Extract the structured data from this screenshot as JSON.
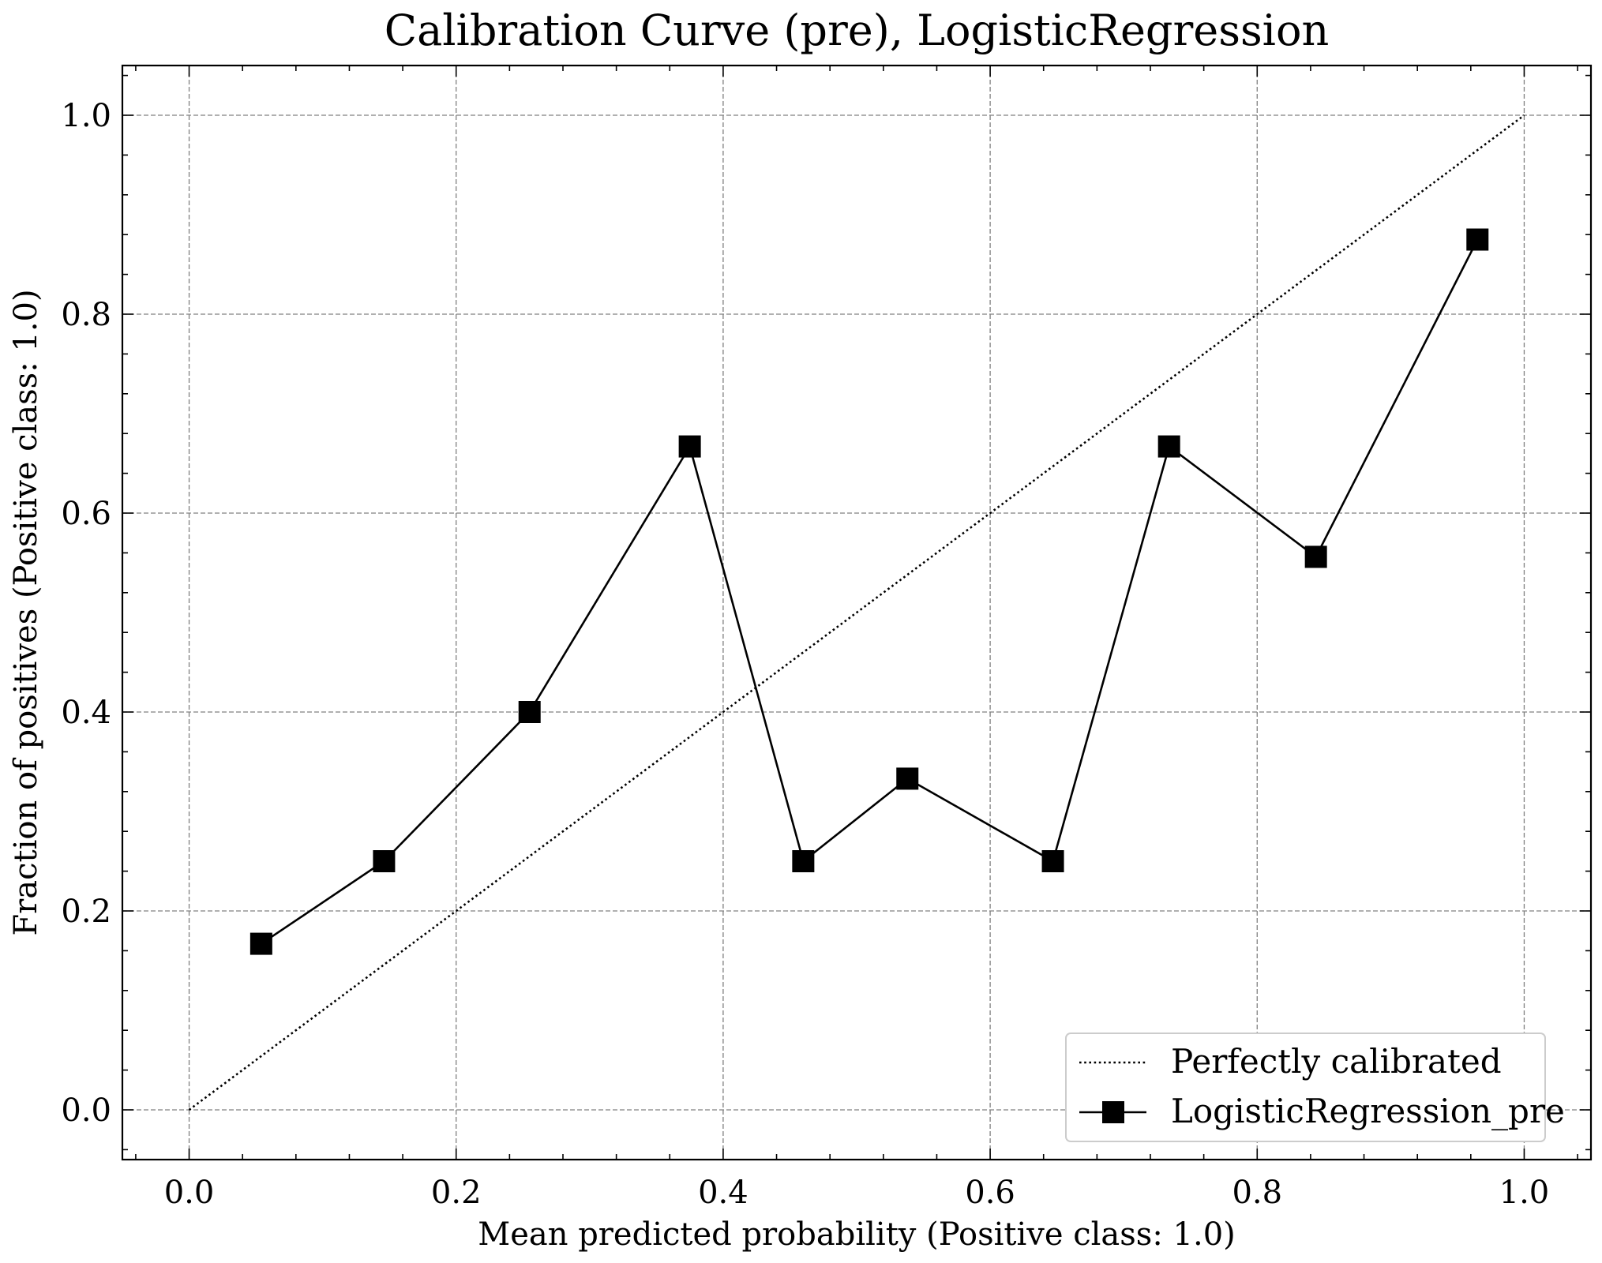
{
  "chart_data": {
    "type": "line",
    "title": "Calibration Curve (pre), LogisticRegression",
    "xlabel": "Mean predicted probability (Positive class: 1.0)",
    "ylabel": "Fraction of positives (Positive class: 1.0)",
    "xlim": [
      -0.05,
      1.05
    ],
    "ylim": [
      -0.05,
      1.05
    ],
    "x_ticks": [
      "0.0",
      "0.2",
      "0.4",
      "0.6",
      "0.8",
      "1.0"
    ],
    "y_ticks": [
      "0.0",
      "0.2",
      "0.4",
      "0.6",
      "0.8",
      "1.0"
    ],
    "grid": true,
    "legend_position": "lower right",
    "series": [
      {
        "name": "Perfectly calibrated",
        "style": "dotted",
        "marker": "none",
        "color": "#000000",
        "x": [
          0.0,
          1.0
        ],
        "y": [
          0.0,
          1.0
        ]
      },
      {
        "name": "LogisticRegression_pre",
        "style": "solid",
        "marker": "square",
        "color": "#000000",
        "x": [
          0.054,
          0.146,
          0.255,
          0.375,
          0.46,
          0.538,
          0.647,
          0.734,
          0.844,
          0.965
        ],
        "y": [
          0.167,
          0.25,
          0.4,
          0.667,
          0.25,
          0.333,
          0.25,
          0.667,
          0.556,
          0.875
        ]
      }
    ]
  }
}
